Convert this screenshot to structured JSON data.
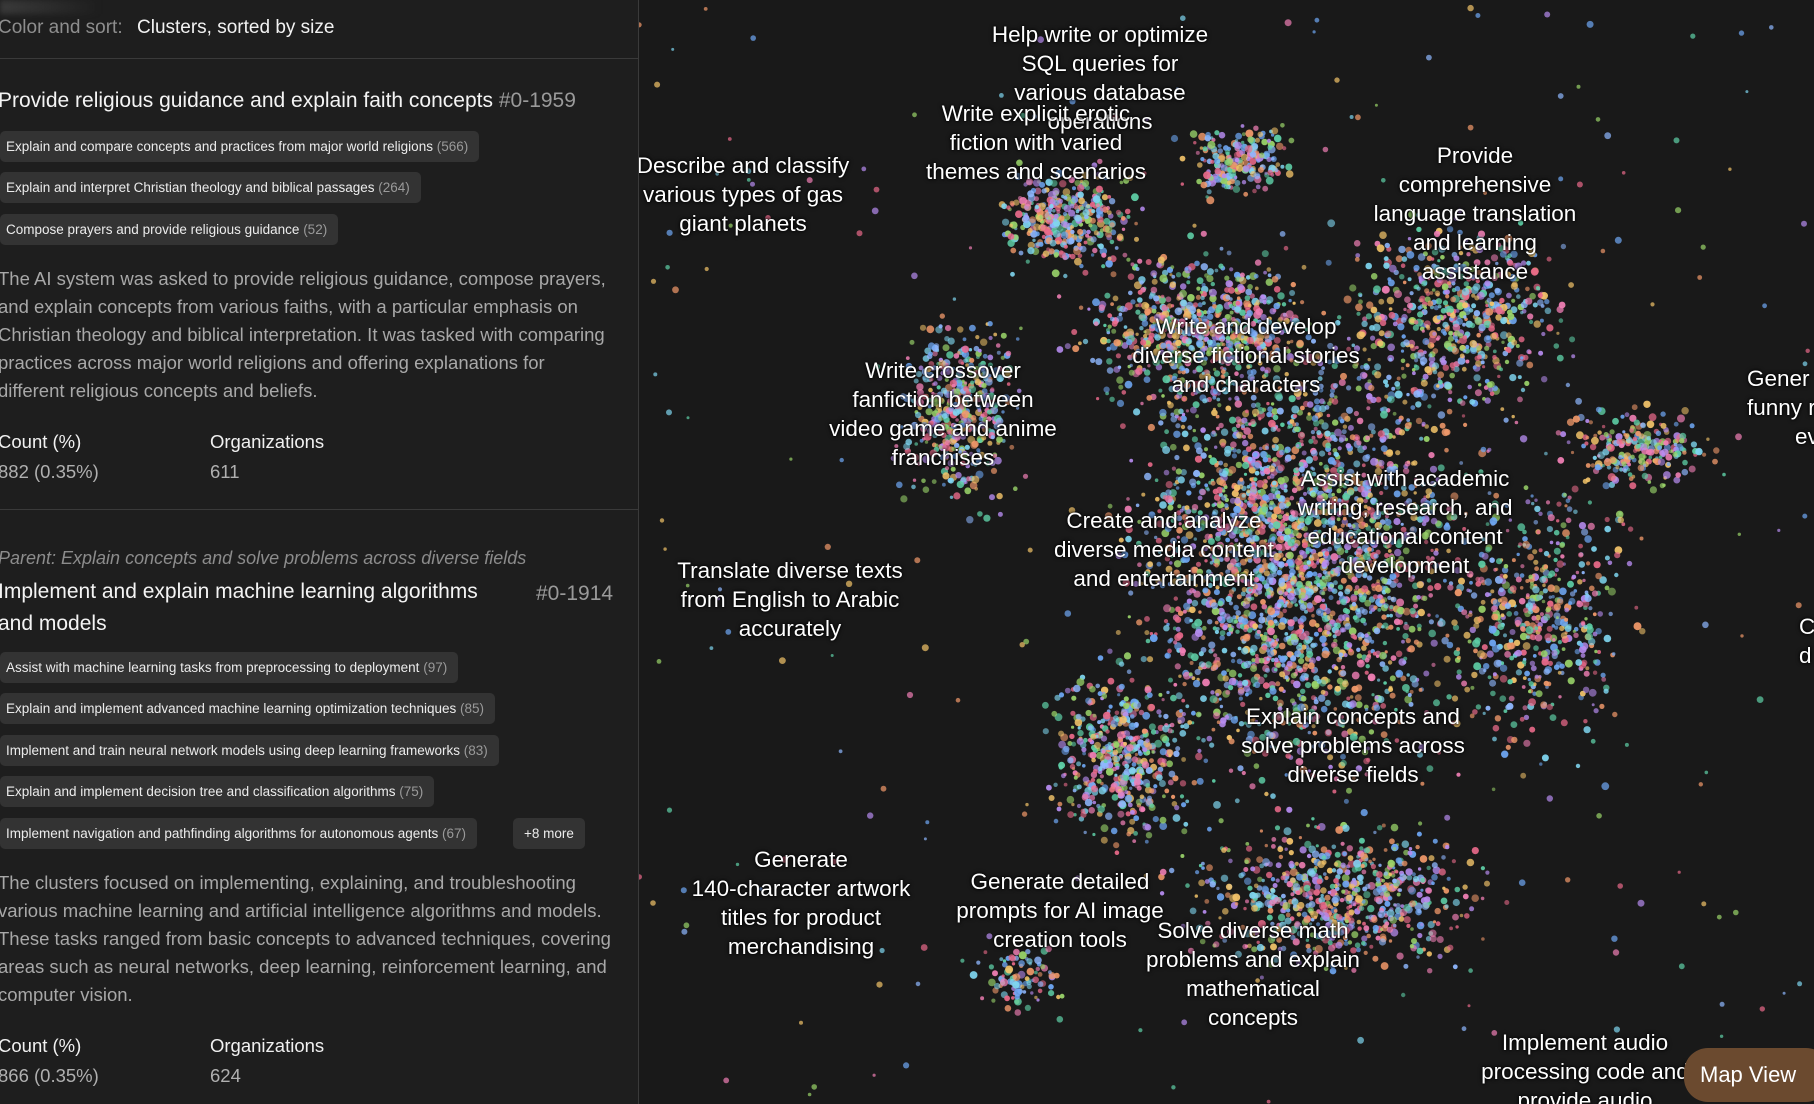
{
  "sort": {
    "label": "Color and sort:",
    "value": "Clusters, sorted by size"
  },
  "clusters": [
    {
      "parent": "",
      "title": "Provide religious guidance and explain faith concepts",
      "id": "#0-1959",
      "subclusters": [
        {
          "label": "Explain and compare concepts and practices from major world religions",
          "count": "(566)"
        },
        {
          "label": "Explain and interpret Christian theology and biblical passages",
          "count": "(264)"
        },
        {
          "label": "Compose prayers and provide religious guidance",
          "count": "(52)"
        }
      ],
      "more": "",
      "description": "The AI system was asked to provide religious guidance, compose prayers, and explain concepts from various faiths, with a particular emphasis on Christian theology and biblical interpretation. It was tasked with comparing practices across major world religions and offering explanations for different religious concepts and beliefs.",
      "count_header": "Count (%)",
      "count_value": "882 (0.35%)",
      "org_header": "Organizations",
      "org_value": "611"
    },
    {
      "parent": "Parent: Explain concepts and solve problems across diverse fields",
      "title_line1": "Implement and explain machine learning algorithms",
      "title_line2": "and models",
      "id": "#0-1914",
      "subclusters": [
        {
          "label": "Assist with machine learning tasks from preprocessing to deployment",
          "count": "(97)"
        },
        {
          "label": "Explain and implement advanced machine learning optimization techniques",
          "count": "(85)"
        },
        {
          "label": "Implement and train neural network models using deep learning frameworks",
          "count": "(83)"
        },
        {
          "label": "Explain and implement decision tree and classification algorithms",
          "count": "(75)"
        },
        {
          "label": "Implement navigation and pathfinding algorithms for autonomous agents",
          "count": "(67)"
        }
      ],
      "more": "+8 more",
      "description": "The clusters focused on implementing, explaining, and troubleshooting various machine learning and artificial intelligence algorithms and models. These tasks ranged from basic concepts to advanced techniques, covering areas such as neural networks, deep learning, reinforcement learning, and computer vision.",
      "count_header": "Count (%)",
      "count_value": "866 (0.35%)",
      "org_header": "Organizations",
      "org_value": "624"
    }
  ],
  "map": {
    "labels": [
      {
        "lines": [
          "Help write or optimize",
          "SQL queries for",
          "various database",
          "operations"
        ]
      },
      {
        "lines": [
          "Write explicit erotic",
          "fiction with varied",
          "themes and scenarios"
        ]
      },
      {
        "lines": [
          "Describe and classify",
          "various types of gas",
          "giant planets"
        ]
      },
      {
        "lines": [
          "Provide",
          "comprehensive",
          "language translation",
          "and learning",
          "assistance"
        ]
      },
      {
        "lines": [
          "Write and develop",
          "diverse fictional stories",
          "and characters"
        ]
      },
      {
        "lines": [
          "Write crossover",
          "fanfiction between",
          "video game and anime",
          "franchises"
        ]
      },
      {
        "lines": [
          "Gener",
          "funny re",
          "eve"
        ]
      },
      {
        "lines": [
          "Assist with academic",
          "writing, research, and",
          "educational content",
          "development"
        ]
      },
      {
        "lines": [
          "Create and analyze",
          "diverse media content",
          "and entertainment"
        ]
      },
      {
        "lines": [
          "Translate diverse texts",
          "from English to Arabic",
          "accurately"
        ]
      },
      {
        "lines": [
          "C",
          "d"
        ]
      },
      {
        "lines": [
          "Explain concepts and",
          "solve problems across",
          "diverse fields"
        ]
      },
      {
        "lines": [
          "Generate",
          "140-character artwork",
          "titles for product",
          "merchandising"
        ]
      },
      {
        "lines": [
          "Generate detailed",
          "prompts for AI image",
          "creation tools"
        ]
      },
      {
        "lines": [
          "Solve diverse math",
          "problems and explain",
          "mathematical",
          "concepts"
        ]
      },
      {
        "lines": [
          "Implement audio",
          "processing code and",
          "provide audio"
        ]
      }
    ],
    "point_colors": [
      "#6fa8f5",
      "#f07fb5",
      "#5fd1a8",
      "#f3c46a",
      "#b78cf0",
      "#f29a6b",
      "#7fd6f0",
      "#e96a8a",
      "#9ad46a",
      "#8fb8ff"
    ]
  },
  "map_view_button": "Map View"
}
